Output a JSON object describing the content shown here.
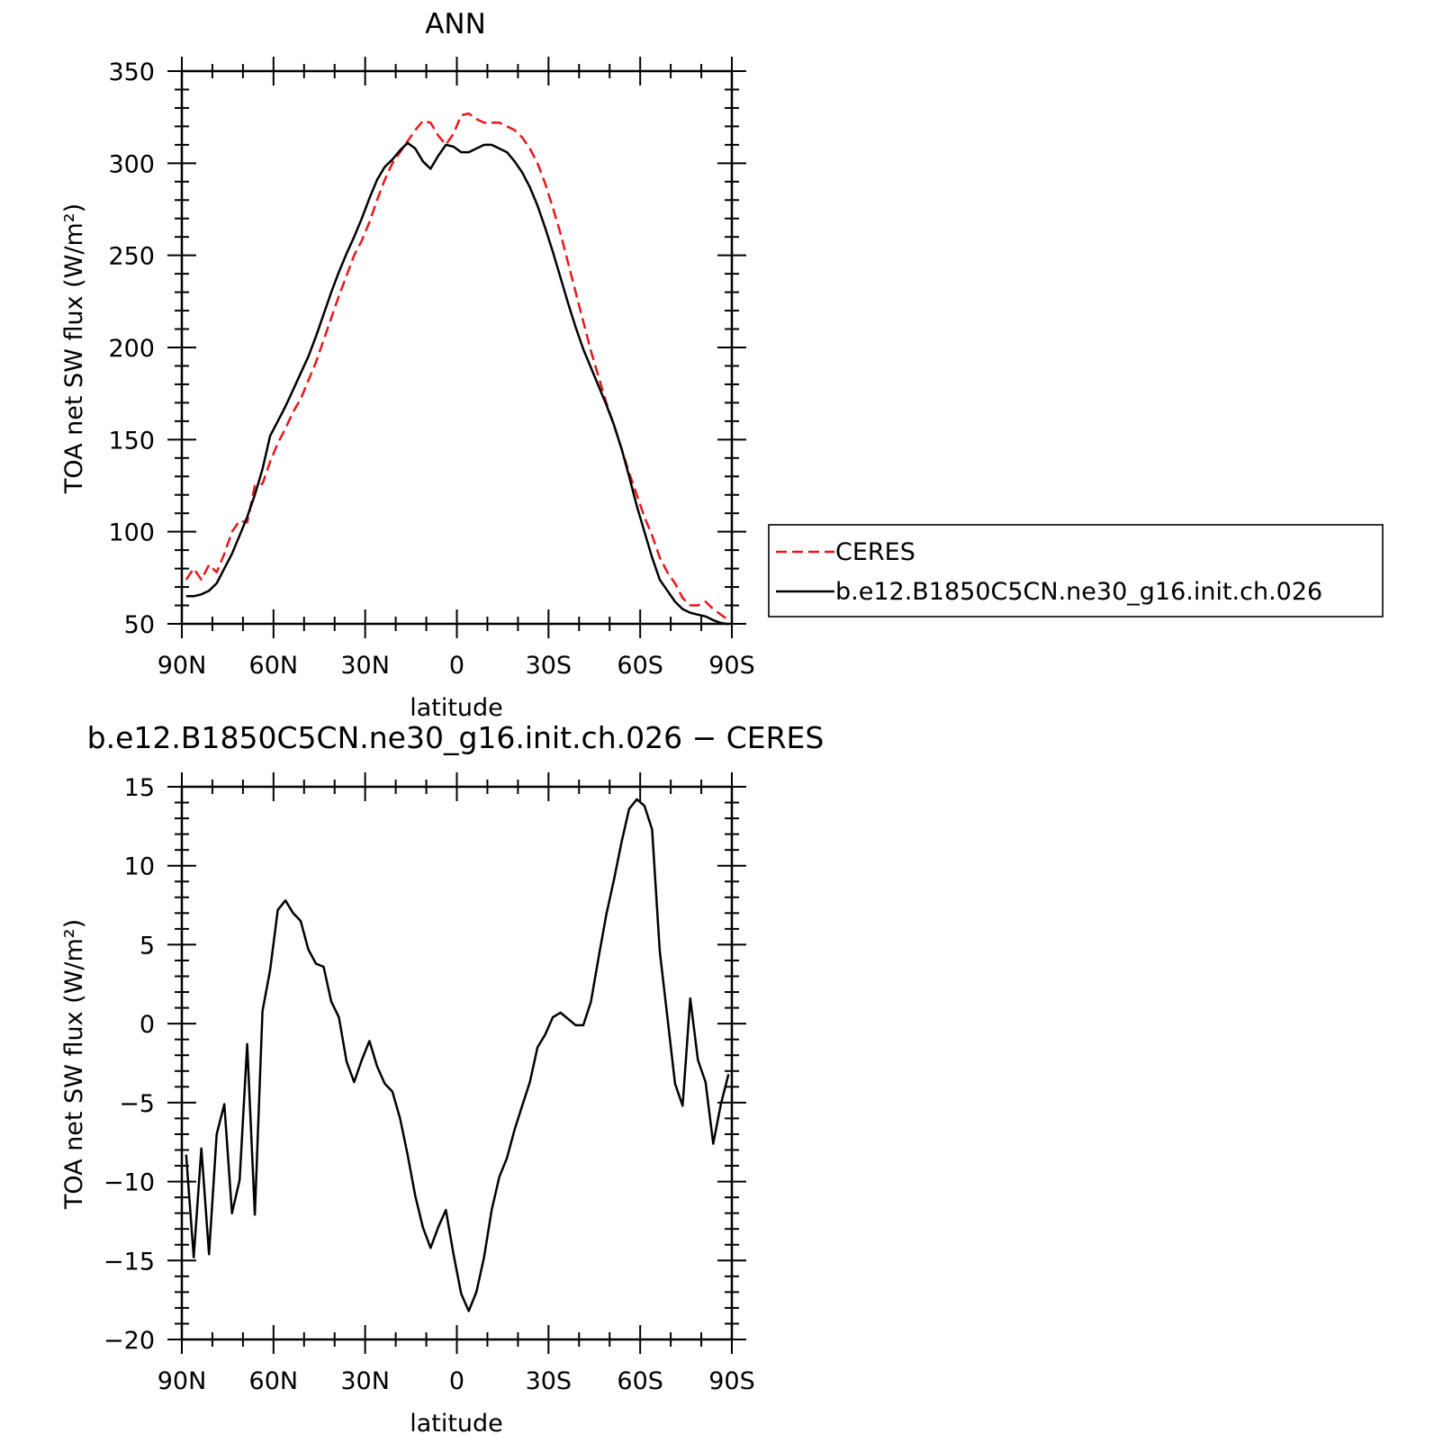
{
  "colors": {
    "model": "#000000",
    "obs": "#e8161b"
  },
  "chart_data": [
    {
      "type": "line",
      "title": "ANN",
      "xlabel": "latitude",
      "ylabel": "TOA net SW flux (W/m²)",
      "xlim": [
        90,
        -90
      ],
      "ylim": [
        50,
        350
      ],
      "yticks": [
        50,
        100,
        150,
        200,
        250,
        300,
        350
      ],
      "xticks": [
        {
          "v": 90,
          "label": "90N"
        },
        {
          "v": 60,
          "label": "60N"
        },
        {
          "v": 30,
          "label": "30N"
        },
        {
          "v": 0,
          "label": "0"
        },
        {
          "v": -30,
          "label": "30S"
        },
        {
          "v": -60,
          "label": "60S"
        },
        {
          "v": -90,
          "label": "90S"
        }
      ],
      "legend_position": "right",
      "series": [
        {
          "name": "CERES",
          "style": "dashed",
          "color": "#e8161b",
          "points": [
            [
              88.6,
              74
            ],
            [
              86.1,
              80
            ],
            [
              83.6,
              74
            ],
            [
              81.1,
              82
            ],
            [
              78.6,
              78
            ],
            [
              76.1,
              88
            ],
            [
              73.6,
              100
            ],
            [
              71.1,
              106
            ],
            [
              68.6,
              105
            ],
            [
              66.1,
              125
            ],
            [
              63.6,
              126
            ],
            [
              61.1,
              138
            ],
            [
              58.6,
              148
            ],
            [
              56.1,
              156
            ],
            [
              53.6,
              165
            ],
            [
              51.1,
              172
            ],
            [
              48.6,
              182
            ],
            [
              46.1,
              192
            ],
            [
              43.6,
              204
            ],
            [
              41.1,
              216
            ],
            [
              38.6,
              228
            ],
            [
              36.1,
              239
            ],
            [
              33.6,
              250
            ],
            [
              31.1,
              258
            ],
            [
              28.6,
              268
            ],
            [
              26.1,
              280
            ],
            [
              23.6,
              291
            ],
            [
              21.1,
              300
            ],
            [
              18.6,
              306
            ],
            [
              16.1,
              312
            ],
            [
              13.6,
              318
            ],
            [
              11.1,
              323
            ],
            [
              8.6,
              322
            ],
            [
              6.1,
              315
            ],
            [
              3.6,
              310
            ],
            [
              1.1,
              316
            ],
            [
              -1.4,
              326
            ],
            [
              -3.9,
              327
            ],
            [
              -6.4,
              324
            ],
            [
              -8.9,
              322
            ],
            [
              -11.4,
              322
            ],
            [
              -13.9,
              322
            ],
            [
              -16.4,
              320
            ],
            [
              -18.9,
              318
            ],
            [
              -21.4,
              314
            ],
            [
              -23.9,
              308
            ],
            [
              -26.4,
              300
            ],
            [
              -28.9,
              289
            ],
            [
              -31.4,
              276
            ],
            [
              -33.9,
              262
            ],
            [
              -36.4,
              246
            ],
            [
              -38.9,
              230
            ],
            [
              -41.4,
              214
            ],
            [
              -43.9,
              198
            ],
            [
              -46.4,
              184
            ],
            [
              -48.9,
              170
            ],
            [
              -51.4,
              158
            ],
            [
              -53.9,
              145
            ],
            [
              -56.4,
              132
            ],
            [
              -58.9,
              120
            ],
            [
              -61.4,
              108
            ],
            [
              -63.9,
              98
            ],
            [
              -66.4,
              86
            ],
            [
              -68.9,
              78
            ],
            [
              -71.4,
              72
            ],
            [
              -73.9,
              64
            ],
            [
              -76.4,
              60
            ],
            [
              -78.9,
              60
            ],
            [
              -81.4,
              62
            ],
            [
              -83.9,
              58
            ],
            [
              -86.4,
              55
            ],
            [
              -88.9,
              52
            ]
          ]
        },
        {
          "name": "b.e12.B1850C5CN.ne30_g16.init.ch.026",
          "style": "solid",
          "color": "#000000",
          "points": [
            [
              88.6,
              65
            ],
            [
              86.1,
              65
            ],
            [
              83.6,
              66
            ],
            [
              81.1,
              68
            ],
            [
              78.6,
              72
            ],
            [
              76.1,
              80
            ],
            [
              73.6,
              88
            ],
            [
              71.1,
              98
            ],
            [
              68.6,
              108
            ],
            [
              66.1,
              120
            ],
            [
              63.6,
              134
            ],
            [
              61.1,
              152
            ],
            [
              58.6,
              160
            ],
            [
              56.1,
              168
            ],
            [
              53.6,
              177
            ],
            [
              51.1,
              186
            ],
            [
              48.6,
              195
            ],
            [
              46.1,
              206
            ],
            [
              43.6,
              218
            ],
            [
              41.1,
              230
            ],
            [
              38.6,
              241
            ],
            [
              36.1,
              251
            ],
            [
              33.6,
              260
            ],
            [
              31.1,
              270
            ],
            [
              28.6,
              281
            ],
            [
              26.1,
              291
            ],
            [
              23.6,
              298
            ],
            [
              21.1,
              302
            ],
            [
              18.6,
              307
            ],
            [
              16.1,
              311
            ],
            [
              13.6,
              308
            ],
            [
              11.1,
              301
            ],
            [
              8.6,
              297
            ],
            [
              6.1,
              304
            ],
            [
              3.6,
              310
            ],
            [
              1.1,
              309
            ],
            [
              -1.4,
              306
            ],
            [
              -3.9,
              306
            ],
            [
              -6.4,
              308
            ],
            [
              -8.9,
              310
            ],
            [
              -11.4,
              310
            ],
            [
              -13.9,
              308
            ],
            [
              -16.4,
              306
            ],
            [
              -18.9,
              301
            ],
            [
              -21.4,
              295
            ],
            [
              -23.9,
              287
            ],
            [
              -26.4,
              277
            ],
            [
              -28.9,
              265
            ],
            [
              -31.4,
              252
            ],
            [
              -33.9,
              238
            ],
            [
              -36.4,
              224
            ],
            [
              -38.9,
              211
            ],
            [
              -41.4,
              199
            ],
            [
              -43.9,
              189
            ],
            [
              -46.4,
              179
            ],
            [
              -48.9,
              169
            ],
            [
              -51.4,
              158
            ],
            [
              -53.9,
              145
            ],
            [
              -56.4,
              130
            ],
            [
              -58.9,
              114
            ],
            [
              -61.4,
              100
            ],
            [
              -63.9,
              86
            ],
            [
              -66.4,
              74
            ],
            [
              -68.9,
              68
            ],
            [
              -71.4,
              62
            ],
            [
              -73.9,
              58
            ],
            [
              -76.4,
              56
            ],
            [
              -78.9,
              55
            ],
            [
              -81.4,
              54
            ],
            [
              -83.9,
              52
            ],
            [
              -86.4,
              50.5
            ],
            [
              -88.9,
              49.8
            ]
          ]
        }
      ]
    },
    {
      "type": "line",
      "title": "b.e12.B1850C5CN.ne30_g16.init.ch.026 − CERES",
      "xlabel": "latitude",
      "ylabel": "TOA net SW flux (W/m²)",
      "xlim": [
        90,
        -90
      ],
      "ylim": [
        -20,
        15
      ],
      "yticks": [
        -20,
        -15,
        -10,
        -5,
        0,
        5,
        10,
        15
      ],
      "xticks": [
        {
          "v": 90,
          "label": "90N"
        },
        {
          "v": 60,
          "label": "60N"
        },
        {
          "v": 30,
          "label": "30N"
        },
        {
          "v": 0,
          "label": "0"
        },
        {
          "v": -30,
          "label": "30S"
        },
        {
          "v": -60,
          "label": "60S"
        },
        {
          "v": -90,
          "label": "90S"
        }
      ],
      "series": [
        {
          "style": "solid",
          "color": "#000000",
          "points": [
            [
              88.6,
              -8.3
            ],
            [
              86.1,
              -14.8
            ],
            [
              83.6,
              -7.9
            ],
            [
              81.1,
              -14.6
            ],
            [
              78.6,
              -7.0
            ],
            [
              76.1,
              -5.1
            ],
            [
              73.6,
              -12.0
            ],
            [
              71.1,
              -9.9
            ],
            [
              68.6,
              -1.3
            ],
            [
              66.1,
              -12.1
            ],
            [
              63.6,
              0.8
            ],
            [
              61.1,
              3.4
            ],
            [
              58.6,
              7.2
            ],
            [
              56.1,
              7.8
            ],
            [
              53.6,
              7.0
            ],
            [
              51.1,
              6.5
            ],
            [
              48.6,
              4.7
            ],
            [
              46.1,
              3.8
            ],
            [
              43.6,
              3.6
            ],
            [
              41.1,
              1.4
            ],
            [
              38.6,
              0.4
            ],
            [
              36.1,
              -2.4
            ],
            [
              33.6,
              -3.7
            ],
            [
              31.1,
              -2.3
            ],
            [
              28.6,
              -1.1
            ],
            [
              26.1,
              -2.7
            ],
            [
              23.6,
              -3.8
            ],
            [
              21.1,
              -4.3
            ],
            [
              18.6,
              -6.0
            ],
            [
              16.1,
              -8.3
            ],
            [
              13.6,
              -10.9
            ],
            [
              11.1,
              -12.9
            ],
            [
              8.6,
              -14.2
            ],
            [
              6.1,
              -12.9
            ],
            [
              3.6,
              -11.8
            ],
            [
              1.1,
              -14.6
            ],
            [
              -1.4,
              -17.1
            ],
            [
              -3.9,
              -18.2
            ],
            [
              -6.4,
              -17.0
            ],
            [
              -8.9,
              -14.8
            ],
            [
              -11.4,
              -11.8
            ],
            [
              -13.9,
              -9.7
            ],
            [
              -16.4,
              -8.5
            ],
            [
              -18.9,
              -6.7
            ],
            [
              -21.4,
              -5.2
            ],
            [
              -23.9,
              -3.7
            ],
            [
              -26.4,
              -1.5
            ],
            [
              -28.9,
              -0.7
            ],
            [
              -31.4,
              0.4
            ],
            [
              -33.9,
              0.7
            ],
            [
              -36.4,
              0.3
            ],
            [
              -38.9,
              -0.1
            ],
            [
              -41.4,
              -0.1
            ],
            [
              -43.9,
              1.4
            ],
            [
              -46.4,
              4.2
            ],
            [
              -48.9,
              6.9
            ],
            [
              -51.4,
              9.1
            ],
            [
              -53.9,
              11.5
            ],
            [
              -56.4,
              13.6
            ],
            [
              -58.9,
              14.2
            ],
            [
              -61.4,
              13.8
            ],
            [
              -63.9,
              12.3
            ],
            [
              -66.4,
              4.6
            ],
            [
              -68.9,
              0.4
            ],
            [
              -71.4,
              -3.8
            ],
            [
              -73.9,
              -5.2
            ],
            [
              -76.4,
              1.6
            ],
            [
              -78.9,
              -2.3
            ],
            [
              -81.4,
              -3.7
            ],
            [
              -83.9,
              -7.6
            ],
            [
              -86.4,
              -5.1
            ],
            [
              -88.9,
              -3.2
            ]
          ]
        }
      ]
    }
  ]
}
